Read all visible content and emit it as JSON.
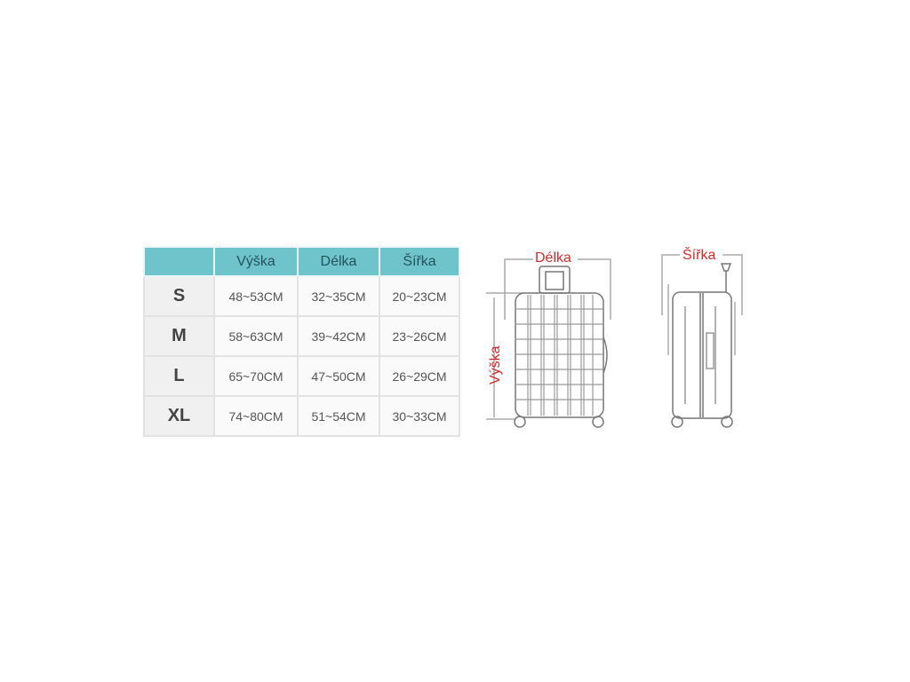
{
  "size_table": {
    "headers": [
      "",
      "Výška",
      "Délka",
      "Šířka"
    ],
    "rows": [
      {
        "size": "S",
        "vyska": "48~53CM",
        "delka": "32~35CM",
        "sirka": "20~23CM"
      },
      {
        "size": "M",
        "vyska": "58~63CM",
        "delka": "39~42CM",
        "sirka": "23~26CM"
      },
      {
        "size": "L",
        "vyska": "65~70CM",
        "delka": "47~50CM",
        "sirka": "26~29CM"
      },
      {
        "size": "XL",
        "vyska": "74~80CM",
        "delka": "51~54CM",
        "sirka": "30~33CM"
      }
    ],
    "header_color": "#6fc3cb"
  },
  "diagram": {
    "length_label": "Délka",
    "height_label": "Výška",
    "width_label": "Šířka",
    "label_color": "#d42a2a"
  }
}
